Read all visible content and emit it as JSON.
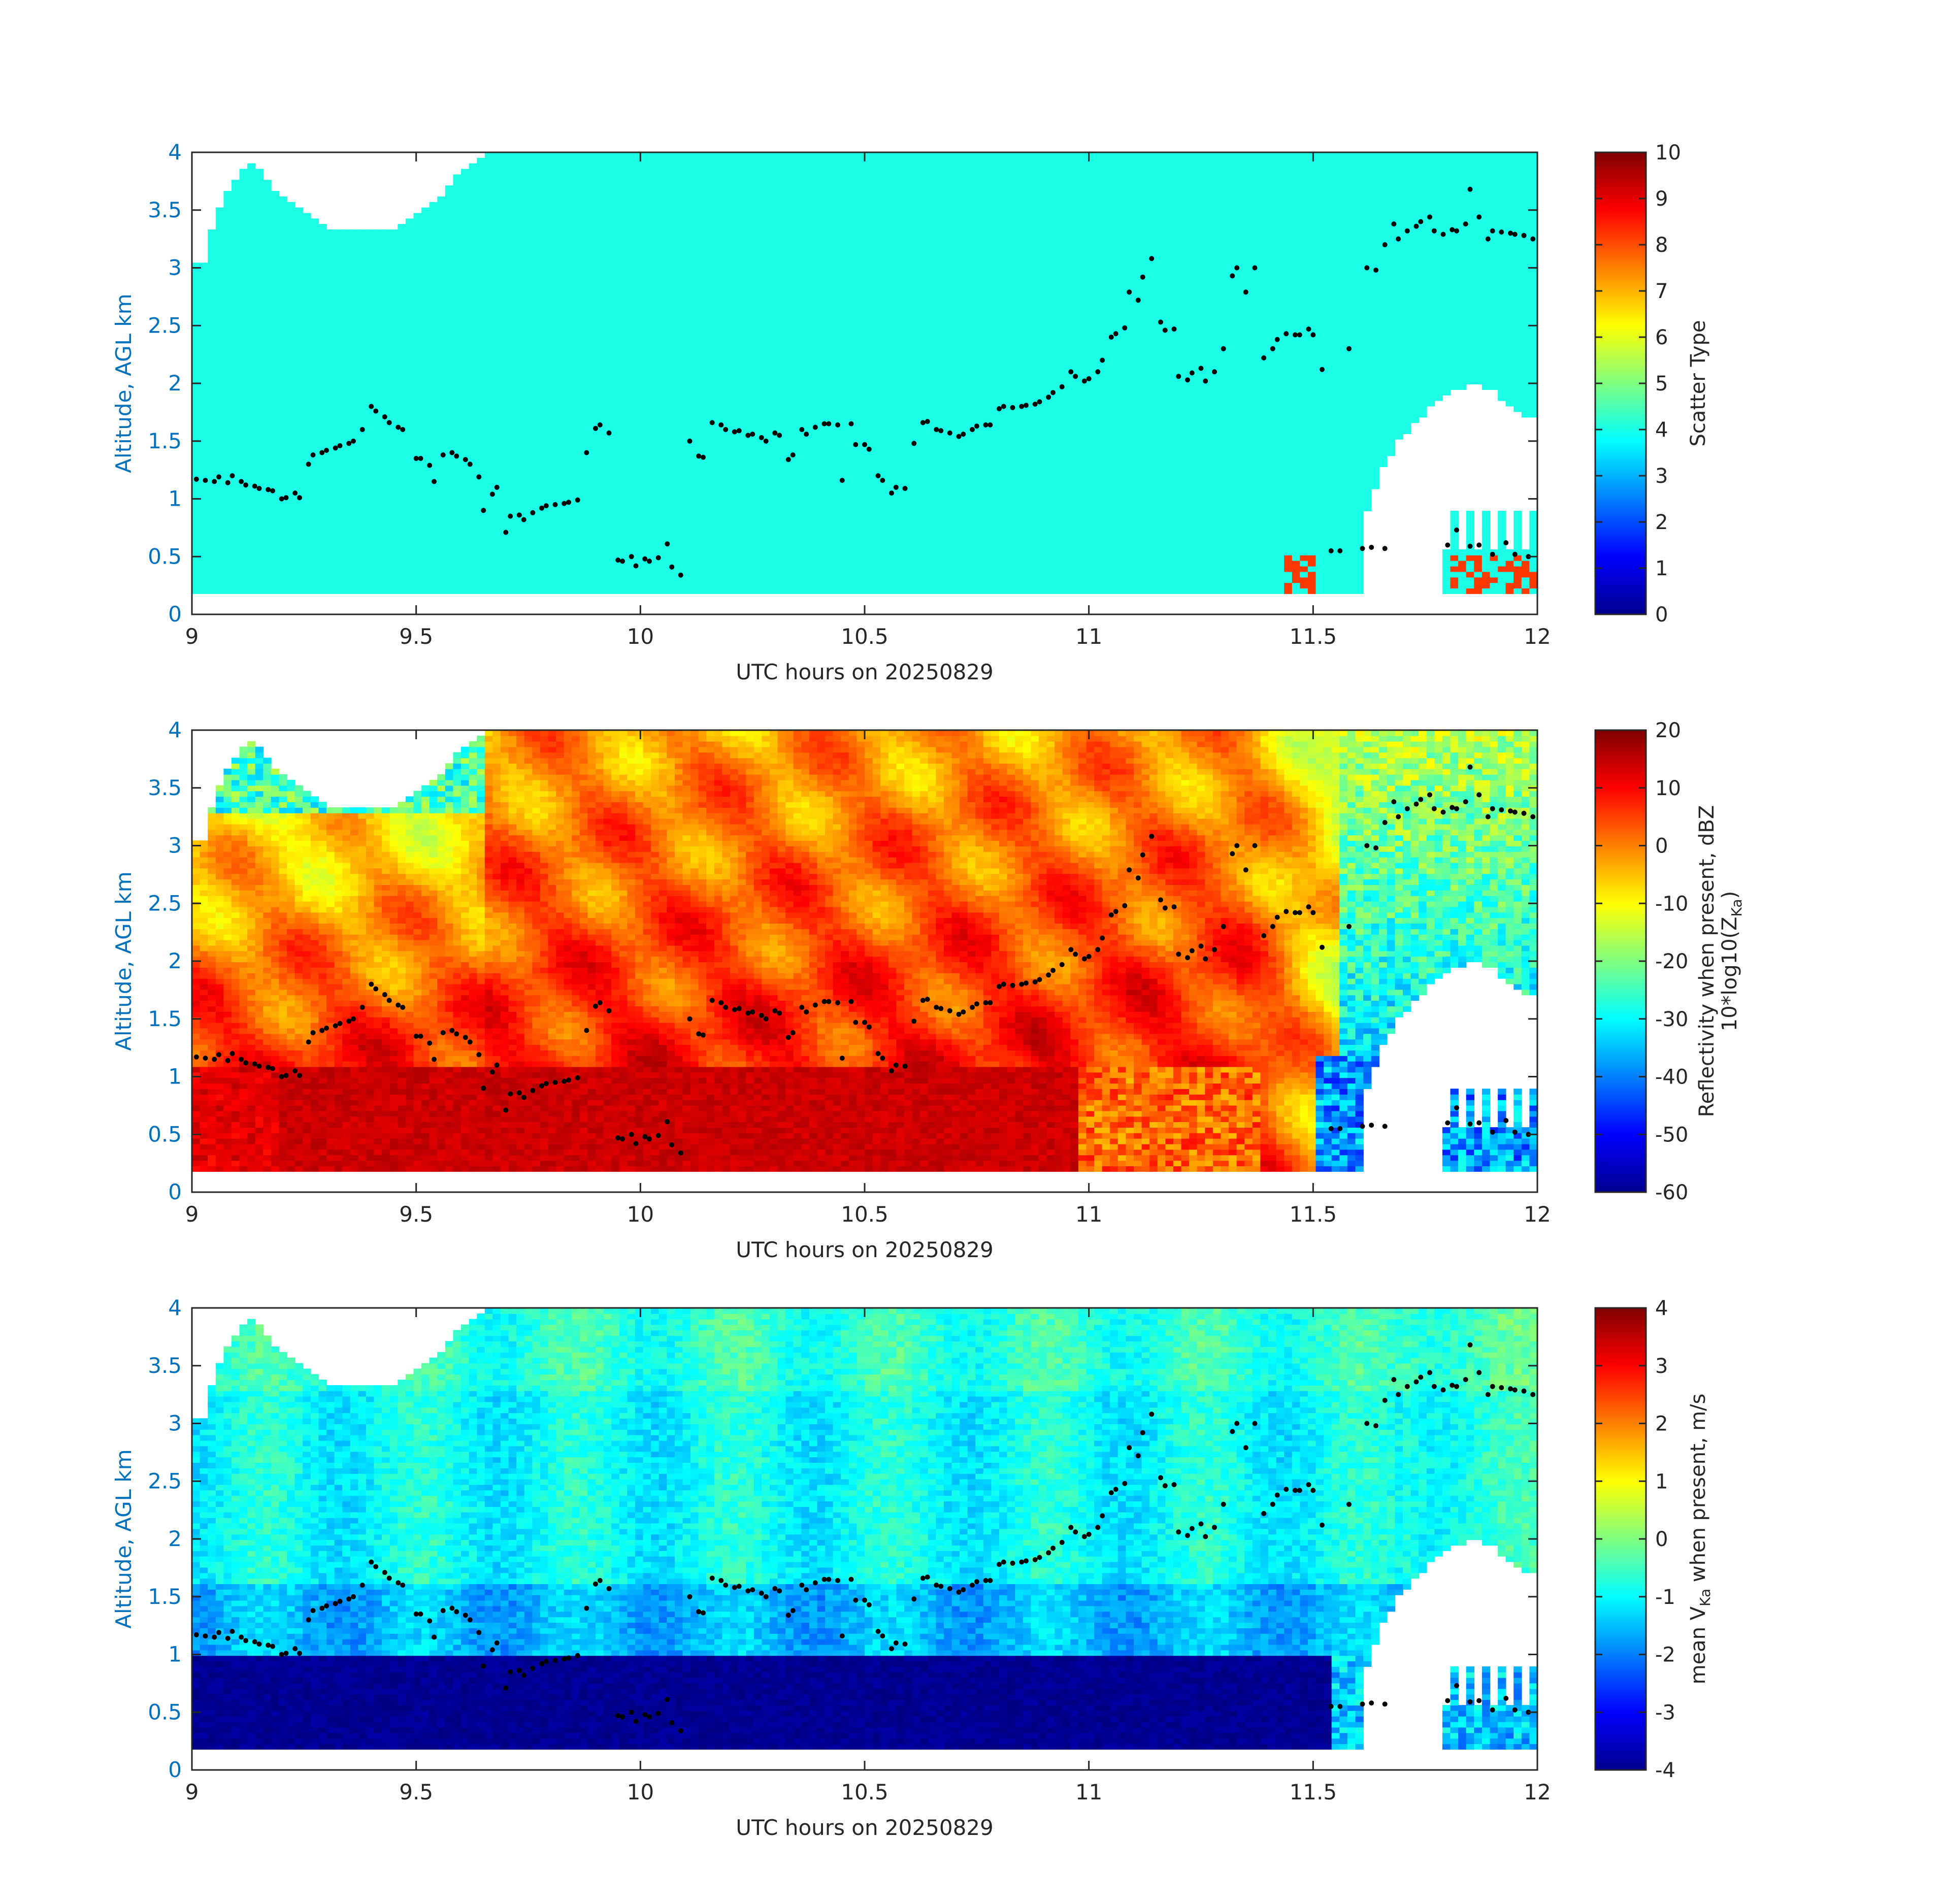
{
  "figure": {
    "date_label": "UTC hours on 20250829"
  },
  "chart_data": [
    {
      "type": "heatmap",
      "panel": "scatter-type",
      "xlabel": "UTC hours on 20250829",
      "ylabel": "Altitude, AGL km",
      "xlim": [
        9,
        12
      ],
      "ylim": [
        0,
        4
      ],
      "xticks": [
        9,
        9.5,
        10,
        10.5,
        11,
        11.5,
        12
      ],
      "xtick_labels": [
        "9",
        "9.5",
        "10",
        "10.5",
        "11",
        "11.5",
        "12"
      ],
      "yticks": [
        0,
        0.5,
        1,
        1.5,
        2,
        2.5,
        3,
        3.5,
        4
      ],
      "ytick_labels": [
        "0",
        "0.5",
        "1",
        "1.5",
        "2",
        "2.5",
        "3",
        "3.5",
        "4"
      ],
      "colorbar": {
        "label": "Scatter Type",
        "label_sub": "",
        "range": [
          0,
          10
        ],
        "ticks": [
          0,
          1,
          2,
          3,
          4,
          5,
          6,
          7,
          8,
          9,
          10
        ],
        "tick_labels": [
          "0",
          "1",
          "2",
          "3",
          "4",
          "5",
          "6",
          "7",
          "8",
          "9",
          "10"
        ]
      },
      "colormap": "jet",
      "dominant_value": 4,
      "data_region": {
        "y_bottom_km": 0.18,
        "y_top_km": 4.0
      },
      "grid": false
    },
    {
      "type": "heatmap",
      "panel": "reflectivity",
      "xlabel": "UTC hours on 20250829",
      "ylabel": "Altitude, AGL km",
      "xlim": [
        9,
        12
      ],
      "ylim": [
        0,
        4
      ],
      "xticks": [
        9,
        9.5,
        10,
        10.5,
        11,
        11.5,
        12
      ],
      "xtick_labels": [
        "9",
        "9.5",
        "10",
        "10.5",
        "11",
        "11.5",
        "12"
      ],
      "yticks": [
        0,
        0.5,
        1,
        1.5,
        2,
        2.5,
        3,
        3.5,
        4
      ],
      "ytick_labels": [
        "0",
        "0.5",
        "1",
        "1.5",
        "2",
        "2.5",
        "3",
        "3.5",
        "4"
      ],
      "colorbar": {
        "label": "Reflectivity when present, dBZ",
        "label2": "10*log10(Z",
        "label2_sub": "Ka",
        "label2_end": ")",
        "range": [
          -60,
          20
        ],
        "ticks": [
          -60,
          -50,
          -40,
          -30,
          -20,
          -10,
          0,
          10,
          20
        ],
        "tick_labels": [
          "-60",
          "-50",
          "-40",
          "-30",
          "-20",
          "-10",
          "0",
          "10",
          "20"
        ]
      },
      "colormap": "jet",
      "grid": false
    },
    {
      "type": "heatmap",
      "panel": "mean-velocity",
      "xlabel": "UTC hours on 20250829",
      "ylabel": "Altitude, AGL km",
      "xlim": [
        9,
        12
      ],
      "ylim": [
        0,
        4
      ],
      "xticks": [
        9,
        9.5,
        10,
        10.5,
        11,
        11.5,
        12
      ],
      "xtick_labels": [
        "9",
        "9.5",
        "10",
        "10.5",
        "11",
        "11.5",
        "12"
      ],
      "yticks": [
        0,
        0.5,
        1,
        1.5,
        2,
        2.5,
        3,
        3.5,
        4
      ],
      "ytick_labels": [
        "0",
        "0.5",
        "1",
        "1.5",
        "2",
        "2.5",
        "3",
        "3.5",
        "4"
      ],
      "colorbar": {
        "label_pre": "mean V",
        "label_sub": "Ka",
        "label_post": " when present, m/s",
        "range": [
          -4,
          4
        ],
        "ticks": [
          -4,
          -3,
          -2,
          -1,
          0,
          1,
          2,
          3,
          4
        ],
        "tick_labels": [
          "-4",
          "-3",
          "-2",
          "-1",
          "0",
          "1",
          "2",
          "3",
          "4"
        ]
      },
      "colormap": "jet",
      "grid": false
    }
  ],
  "cloud_base_points": {
    "description_units": "x in UTC hours, y in km AGL",
    "points": [
      [
        9.01,
        1.17
      ],
      [
        9.03,
        1.16
      ],
      [
        9.05,
        1.15
      ],
      [
        9.06,
        1.19
      ],
      [
        9.08,
        1.14
      ],
      [
        9.09,
        1.2
      ],
      [
        9.11,
        1.15
      ],
      [
        9.12,
        1.12
      ],
      [
        9.14,
        1.11
      ],
      [
        9.15,
        1.09
      ],
      [
        9.17,
        1.08
      ],
      [
        9.18,
        1.07
      ],
      [
        9.2,
        1.0
      ],
      [
        9.21,
        1.01
      ],
      [
        9.23,
        1.05
      ],
      [
        9.24,
        1.01
      ],
      [
        9.26,
        1.3
      ],
      [
        9.27,
        1.38
      ],
      [
        9.29,
        1.4
      ],
      [
        9.3,
        1.42
      ],
      [
        9.32,
        1.44
      ],
      [
        9.33,
        1.46
      ],
      [
        9.35,
        1.48
      ],
      [
        9.36,
        1.5
      ],
      [
        9.38,
        1.6
      ],
      [
        9.4,
        1.8
      ],
      [
        9.41,
        1.76
      ],
      [
        9.43,
        1.71
      ],
      [
        9.44,
        1.66
      ],
      [
        9.46,
        1.62
      ],
      [
        9.47,
        1.6
      ],
      [
        9.5,
        1.35
      ],
      [
        9.51,
        1.35
      ],
      [
        9.53,
        1.29
      ],
      [
        9.54,
        1.15
      ],
      [
        9.56,
        1.38
      ],
      [
        9.58,
        1.4
      ],
      [
        9.59,
        1.37
      ],
      [
        9.61,
        1.34
      ],
      [
        9.62,
        1.3
      ],
      [
        9.64,
        1.19
      ],
      [
        9.65,
        0.9
      ],
      [
        9.67,
        1.04
      ],
      [
        9.68,
        1.1
      ],
      [
        9.7,
        0.71
      ],
      [
        9.71,
        0.85
      ],
      [
        9.73,
        0.86
      ],
      [
        9.74,
        0.82
      ],
      [
        9.76,
        0.88
      ],
      [
        9.78,
        0.92
      ],
      [
        9.79,
        0.94
      ],
      [
        9.81,
        0.95
      ],
      [
        9.83,
        0.96
      ],
      [
        9.84,
        0.97
      ],
      [
        9.86,
        0.99
      ],
      [
        9.88,
        1.4
      ],
      [
        9.9,
        1.61
      ],
      [
        9.91,
        1.64
      ],
      [
        9.93,
        1.57
      ],
      [
        9.95,
        0.47
      ],
      [
        9.96,
        0.46
      ],
      [
        9.98,
        0.5
      ],
      [
        9.99,
        0.42
      ],
      [
        10.01,
        0.48
      ],
      [
        10.02,
        0.46
      ],
      [
        10.04,
        0.49
      ],
      [
        10.06,
        0.61
      ],
      [
        10.07,
        0.41
      ],
      [
        10.09,
        0.34
      ],
      [
        10.11,
        1.5
      ],
      [
        10.13,
        1.37
      ],
      [
        10.14,
        1.36
      ],
      [
        10.16,
        1.66
      ],
      [
        10.18,
        1.64
      ],
      [
        10.19,
        1.6
      ],
      [
        10.21,
        1.58
      ],
      [
        10.22,
        1.59
      ],
      [
        10.24,
        1.55
      ],
      [
        10.25,
        1.56
      ],
      [
        10.27,
        1.53
      ],
      [
        10.28,
        1.5
      ],
      [
        10.3,
        1.57
      ],
      [
        10.31,
        1.55
      ],
      [
        10.33,
        1.34
      ],
      [
        10.34,
        1.38
      ],
      [
        10.36,
        1.6
      ],
      [
        10.37,
        1.56
      ],
      [
        10.39,
        1.62
      ],
      [
        10.41,
        1.65
      ],
      [
        10.42,
        1.65
      ],
      [
        10.44,
        1.64
      ],
      [
        10.45,
        1.16
      ],
      [
        10.47,
        1.65
      ],
      [
        10.48,
        1.47
      ],
      [
        10.5,
        1.47
      ],
      [
        10.51,
        1.43
      ],
      [
        10.53,
        1.2
      ],
      [
        10.54,
        1.16
      ],
      [
        10.56,
        1.05
      ],
      [
        10.57,
        1.1
      ],
      [
        10.59,
        1.09
      ],
      [
        10.61,
        1.48
      ],
      [
        10.63,
        1.66
      ],
      [
        10.64,
        1.67
      ],
      [
        10.66,
        1.6
      ],
      [
        10.67,
        1.59
      ],
      [
        10.69,
        1.57
      ],
      [
        10.71,
        1.54
      ],
      [
        10.72,
        1.56
      ],
      [
        10.74,
        1.6
      ],
      [
        10.75,
        1.63
      ],
      [
        10.77,
        1.64
      ],
      [
        10.78,
        1.64
      ],
      [
        10.8,
        1.78
      ],
      [
        10.81,
        1.8
      ],
      [
        10.83,
        1.79
      ],
      [
        10.85,
        1.8
      ],
      [
        10.86,
        1.81
      ],
      [
        10.88,
        1.82
      ],
      [
        10.89,
        1.84
      ],
      [
        10.91,
        1.88
      ],
      [
        10.92,
        1.92
      ],
      [
        10.94,
        1.97
      ],
      [
        10.96,
        2.1
      ],
      [
        10.97,
        2.06
      ],
      [
        10.99,
        2.02
      ],
      [
        11.0,
        2.04
      ],
      [
        11.02,
        2.1
      ],
      [
        11.03,
        2.2
      ],
      [
        11.05,
        2.4
      ],
      [
        11.06,
        2.43
      ],
      [
        11.08,
        2.48
      ],
      [
        11.09,
        2.79
      ],
      [
        11.11,
        2.72
      ],
      [
        11.12,
        2.92
      ],
      [
        11.14,
        3.08
      ],
      [
        11.16,
        2.53
      ],
      [
        11.17,
        2.46
      ],
      [
        11.19,
        2.47
      ],
      [
        11.2,
        2.06
      ],
      [
        11.22,
        2.03
      ],
      [
        11.23,
        2.09
      ],
      [
        11.25,
        2.13
      ],
      [
        11.26,
        2.02
      ],
      [
        11.28,
        2.1
      ],
      [
        11.3,
        2.3
      ],
      [
        11.32,
        2.93
      ],
      [
        11.33,
        3.0
      ],
      [
        11.35,
        2.79
      ],
      [
        11.37,
        3.0
      ],
      [
        11.39,
        2.22
      ],
      [
        11.41,
        2.3
      ],
      [
        11.42,
        2.38
      ],
      [
        11.44,
        2.43
      ],
      [
        11.46,
        2.42
      ],
      [
        11.47,
        2.42
      ],
      [
        11.49,
        2.47
      ],
      [
        11.5,
        2.42
      ],
      [
        11.52,
        2.12
      ],
      [
        11.54,
        0.55
      ],
      [
        11.56,
        0.55
      ],
      [
        11.58,
        2.3
      ],
      [
        11.61,
        0.57
      ],
      [
        11.62,
        3.0
      ],
      [
        11.63,
        0.58
      ],
      [
        11.64,
        2.98
      ],
      [
        11.66,
        3.2
      ],
      [
        11.68,
        3.38
      ],
      [
        11.69,
        3.25
      ],
      [
        11.71,
        3.32
      ],
      [
        11.73,
        3.36
      ],
      [
        11.74,
        3.4
      ],
      [
        11.76,
        3.44
      ],
      [
        11.77,
        3.32
      ],
      [
        11.79,
        3.29
      ],
      [
        11.81,
        3.33
      ],
      [
        11.82,
        3.32
      ],
      [
        11.84,
        3.38
      ],
      [
        11.85,
        3.68
      ],
      [
        11.87,
        3.44
      ],
      [
        11.89,
        3.25
      ],
      [
        11.9,
        3.32
      ],
      [
        11.92,
        3.31
      ],
      [
        11.94,
        3.3
      ],
      [
        11.95,
        3.29
      ],
      [
        11.97,
        3.28
      ],
      [
        11.99,
        3.25
      ],
      [
        11.66,
        0.57
      ],
      [
        11.8,
        0.6
      ],
      [
        11.82,
        0.73
      ],
      [
        11.85,
        0.59
      ],
      [
        11.87,
        0.6
      ],
      [
        11.9,
        0.52
      ],
      [
        11.93,
        0.62
      ],
      [
        11.95,
        0.52
      ],
      [
        11.98,
        0.5
      ]
    ]
  }
}
